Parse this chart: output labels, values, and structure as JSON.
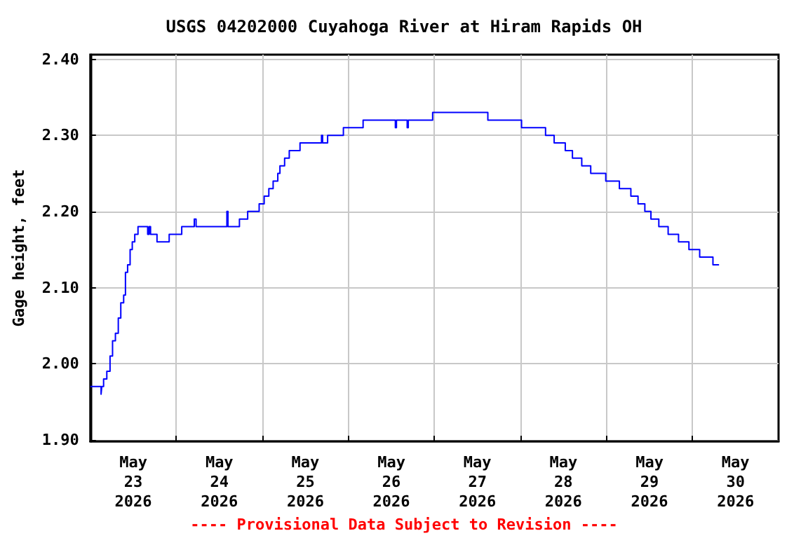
{
  "chart_data": {
    "type": "step",
    "title": "USGS 04202000 Cuyahoga River at Hiram Rapids OH",
    "ylabel": "Gage height, feet",
    "annotations": [
      "---- Provisional Data Subject to Revision ----"
    ],
    "x": [
      "2026-05-23T00:00",
      "2026-05-23T03:00",
      "2026-05-23T03:12",
      "2026-05-23T03:42",
      "2026-05-23T04:36",
      "2026-05-23T05:30",
      "2026-05-23T06:12",
      "2026-05-23T07:00",
      "2026-05-23T07:48",
      "2026-05-23T08:30",
      "2026-05-23T09:18",
      "2026-05-23T09:48",
      "2026-05-23T10:24",
      "2026-05-23T11:06",
      "2026-05-23T11:42",
      "2026-05-23T12:24",
      "2026-05-23T13:18",
      "2026-05-23T16:00",
      "2026-05-23T16:24",
      "2026-05-23T16:48",
      "2026-05-23T18:36",
      "2026-05-23T22:00",
      "2026-05-24T01:30",
      "2026-05-24T05:00",
      "2026-05-24T05:30",
      "2026-05-24T14:06",
      "2026-05-24T14:24",
      "2026-05-24T17:36",
      "2026-05-24T19:54",
      "2026-05-24T23:06",
      "2026-05-25T00:30",
      "2026-05-25T01:48",
      "2026-05-25T03:00",
      "2026-05-25T04:18",
      "2026-05-25T04:54",
      "2026-05-25T06:12",
      "2026-05-25T07:30",
      "2026-05-25T10:30",
      "2026-05-25T16:30",
      "2026-05-25T16:48",
      "2026-05-25T18:12",
      "2026-05-25T22:36",
      "2026-05-26T04:06",
      "2026-05-26T13:06",
      "2026-05-26T13:24",
      "2026-05-26T16:24",
      "2026-05-26T16:42",
      "2026-05-26T23:30",
      "2026-05-27T14:54",
      "2026-05-28T00:18",
      "2026-05-28T07:00",
      "2026-05-28T09:24",
      "2026-05-28T12:30",
      "2026-05-28T14:30",
      "2026-05-28T17:06",
      "2026-05-28T19:36",
      "2026-05-28T23:48",
      "2026-05-29T03:36",
      "2026-05-29T06:48",
      "2026-05-29T08:48",
      "2026-05-29T10:42",
      "2026-05-29T12:24",
      "2026-05-29T14:36",
      "2026-05-29T17:12",
      "2026-05-29T20:06",
      "2026-05-29T23:00",
      "2026-05-30T02:00",
      "2026-05-30T05:42",
      "2026-05-30T07:24"
    ],
    "series": [
      {
        "color": "#0000ff",
        "values": [
          1.97,
          1.96,
          1.97,
          1.98,
          1.99,
          2.01,
          2.03,
          2.04,
          2.06,
          2.08,
          2.09,
          2.12,
          2.13,
          2.15,
          2.16,
          2.17,
          2.18,
          2.17,
          2.18,
          2.17,
          2.16,
          2.17,
          2.18,
          2.19,
          2.18,
          2.2,
          2.18,
          2.19,
          2.2,
          2.21,
          2.22,
          2.23,
          2.24,
          2.25,
          2.26,
          2.27,
          2.28,
          2.29,
          2.3,
          2.29,
          2.3,
          2.31,
          2.32,
          2.31,
          2.32,
          2.31,
          2.32,
          2.33,
          2.32,
          2.31,
          2.3,
          2.29,
          2.28,
          2.27,
          2.26,
          2.25,
          2.24,
          2.23,
          2.22,
          2.21,
          2.2,
          2.19,
          2.18,
          2.17,
          2.16,
          2.15,
          2.14,
          2.13,
          2.13
        ]
      }
    ],
    "xlim": [
      "2026-05-23T00:00",
      "2026-05-31T00:00"
    ],
    "xticks": [
      {
        "value": "2026-05-23T12:00",
        "label": "May\n23\n2026"
      },
      {
        "value": "2026-05-24T00:00",
        "label": null
      },
      {
        "value": "2026-05-24T12:00",
        "label": "May\n24\n2026"
      },
      {
        "value": "2026-05-25T00:00",
        "label": null
      },
      {
        "value": "2026-05-25T12:00",
        "label": "May\n25\n2026"
      },
      {
        "value": "2026-05-26T00:00",
        "label": null
      },
      {
        "value": "2026-05-26T12:00",
        "label": "May\n26\n2026"
      },
      {
        "value": "2026-05-27T00:00",
        "label": null
      },
      {
        "value": "2026-05-27T12:00",
        "label": "May\n27\n2026"
      },
      {
        "value": "2026-05-28T00:00",
        "label": null
      },
      {
        "value": "2026-05-28T12:00",
        "label": "May\n28\n2026"
      },
      {
        "value": "2026-05-29T00:00",
        "label": null
      },
      {
        "value": "2026-05-29T12:00",
        "label": "May\n29\n2026"
      },
      {
        "value": "2026-05-30T00:00",
        "label": null
      },
      {
        "value": "2026-05-30T12:00",
        "label": "May\n30\n2026"
      }
    ],
    "ylim": [
      1.898,
      2.406
    ],
    "yticks": [
      {
        "value": 1.9,
        "label": "1.90"
      },
      {
        "value": 2.0,
        "label": "2.00"
      },
      {
        "value": 2.1,
        "label": "2.10"
      },
      {
        "value": 2.2,
        "label": "2.20"
      },
      {
        "value": 2.3,
        "label": "2.30"
      },
      {
        "value": 2.4,
        "label": "2.40"
      }
    ],
    "grid": true,
    "marker": "none",
    "line_style": "solid"
  }
}
